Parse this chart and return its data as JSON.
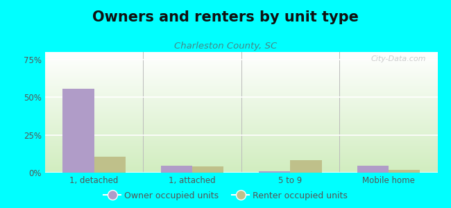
{
  "title": "Owners and renters by unit type",
  "subtitle": "Charleston County, SC",
  "categories": [
    "1, detached",
    "1, attached",
    "5 to 9",
    "Mobile home"
  ],
  "owner_values": [
    55.5,
    4.5,
    1.0,
    4.5
  ],
  "renter_values": [
    10.5,
    4.0,
    8.5,
    2.0
  ],
  "owner_color": "#b09cc8",
  "renter_color": "#bfc08a",
  "ylim": [
    0,
    80
  ],
  "yticks": [
    0,
    25,
    50,
    75
  ],
  "ytick_labels": [
    "0%",
    "25%",
    "50%",
    "75%"
  ],
  "background_color": "#00ffff",
  "plot_bg_top": "#ffffff",
  "plot_bg_bottom": "#d0ecc0",
  "bar_width": 0.32,
  "title_fontsize": 15,
  "subtitle_fontsize": 9.5,
  "legend_fontsize": 9,
  "tick_fontsize": 8.5
}
